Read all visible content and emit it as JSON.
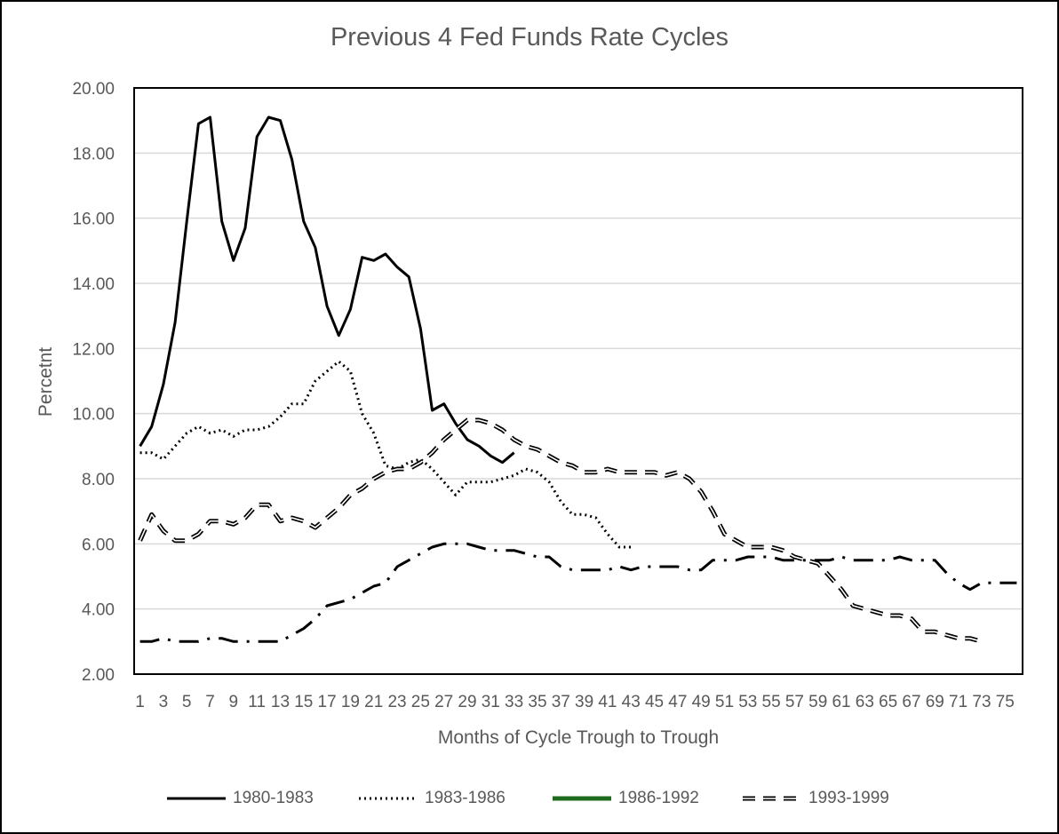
{
  "chart_data": {
    "type": "line",
    "title": "Previous 4 Fed Funds Rate Cycles",
    "xlabel": "Months of Cycle Trough to Trough",
    "ylabel": "Percetnt",
    "ylim": [
      2,
      20
    ],
    "yticks": [
      "2.00",
      "4.00",
      "6.00",
      "8.00",
      "10.00",
      "12.00",
      "14.00",
      "16.00",
      "18.00",
      "20.00"
    ],
    "xlim": [
      1,
      76
    ],
    "xtick_labels": [
      "1",
      "3",
      "5",
      "7",
      "9",
      "11",
      "13",
      "15",
      "17",
      "19",
      "21",
      "23",
      "25",
      "27",
      "29",
      "31",
      "33",
      "35",
      "37",
      "39",
      "41",
      "43",
      "45",
      "47",
      "49",
      "51",
      "53",
      "55",
      "57",
      "59",
      "61",
      "63",
      "65",
      "67",
      "69",
      "71",
      "73",
      "75"
    ],
    "grid": "horizontal",
    "legend_position": "bottom",
    "series": [
      {
        "name": "1980-1983",
        "color": "#000000",
        "line_style": "solid",
        "x": [
          1,
          2,
          3,
          4,
          5,
          6,
          7,
          8,
          9,
          10,
          11,
          12,
          13,
          14,
          15,
          16,
          17,
          18,
          19,
          20,
          21,
          22,
          23,
          24,
          25,
          26,
          27,
          28,
          29,
          30,
          31,
          32,
          33
        ],
        "values": [
          9.0,
          9.6,
          10.9,
          12.8,
          15.9,
          18.9,
          19.1,
          15.9,
          14.7,
          15.7,
          18.5,
          19.1,
          19.0,
          17.8,
          15.9,
          15.1,
          13.3,
          12.4,
          13.2,
          14.8,
          14.7,
          14.9,
          14.5,
          14.2,
          12.6,
          10.1,
          10.3,
          9.7,
          9.2,
          9.0,
          8.7,
          8.5,
          8.8
        ]
      },
      {
        "name": "1983-1986",
        "color": "#000000",
        "line_style": "dotted",
        "x": [
          1,
          2,
          3,
          4,
          5,
          6,
          7,
          8,
          9,
          10,
          11,
          12,
          13,
          14,
          15,
          16,
          17,
          18,
          19,
          20,
          21,
          22,
          23,
          24,
          25,
          26,
          27,
          28,
          29,
          30,
          31,
          32,
          33,
          34,
          35,
          36,
          37,
          38,
          39,
          40,
          41,
          42,
          43
        ],
        "values": [
          8.8,
          8.8,
          8.6,
          9.0,
          9.4,
          9.6,
          9.4,
          9.5,
          9.3,
          9.5,
          9.5,
          9.6,
          9.9,
          10.3,
          10.3,
          11.0,
          11.3,
          11.6,
          11.3,
          10.0,
          9.4,
          8.4,
          8.3,
          8.5,
          8.6,
          8.3,
          7.9,
          7.5,
          7.9,
          7.9,
          7.9,
          8.0,
          8.1,
          8.3,
          8.2,
          7.9,
          7.3,
          6.9,
          6.9,
          6.8,
          6.3,
          5.9,
          5.9
        ]
      },
      {
        "name": "1986-1992",
        "color": "#000000",
        "legend_color": "#1e6b1e",
        "line_style": "dash-dot",
        "x": [
          1,
          2,
          3,
          4,
          5,
          6,
          7,
          8,
          9,
          10,
          11,
          12,
          13,
          14,
          15,
          16,
          17,
          18,
          19,
          20,
          21,
          22,
          23,
          24,
          25,
          26,
          27,
          28,
          29,
          30,
          31,
          32,
          33,
          34,
          35,
          36,
          37,
          38,
          39,
          40,
          41,
          42,
          43,
          44,
          45,
          46,
          47,
          48,
          49,
          50,
          51,
          52,
          53,
          54,
          55,
          56,
          57,
          58,
          59,
          60,
          61,
          62,
          63,
          64,
          65,
          66,
          67,
          68,
          69,
          70,
          71,
          72,
          73,
          74,
          75,
          76
        ],
        "values": [
          3.0,
          3.0,
          3.1,
          3.0,
          3.0,
          3.0,
          3.1,
          3.1,
          3.0,
          3.0,
          3.0,
          3.0,
          3.0,
          3.2,
          3.4,
          3.7,
          4.1,
          4.2,
          4.3,
          4.5,
          4.7,
          4.8,
          5.3,
          5.5,
          5.7,
          5.9,
          6.0,
          6.0,
          6.0,
          5.9,
          5.8,
          5.8,
          5.8,
          5.7,
          5.6,
          5.6,
          5.3,
          5.2,
          5.2,
          5.2,
          5.2,
          5.3,
          5.2,
          5.3,
          5.3,
          5.3,
          5.3,
          5.2,
          5.2,
          5.5,
          5.5,
          5.5,
          5.6,
          5.6,
          5.6,
          5.5,
          5.5,
          5.5,
          5.5,
          5.5,
          5.6,
          5.5,
          5.5,
          5.5,
          5.5,
          5.6,
          5.5,
          5.5,
          5.5,
          5.1,
          4.8,
          4.6,
          4.8,
          4.8,
          4.8,
          4.8
        ]
      },
      {
        "name": "1993-1999",
        "color": "#000000",
        "line_style": "dashed-double",
        "x": [
          1,
          2,
          3,
          4,
          5,
          6,
          7,
          8,
          9,
          10,
          11,
          12,
          13,
          14,
          15,
          16,
          17,
          18,
          19,
          20,
          21,
          22,
          23,
          24,
          25,
          26,
          27,
          28,
          29,
          30,
          31,
          32,
          33,
          34,
          35,
          36,
          37,
          38,
          39,
          40,
          41,
          42,
          43,
          44,
          45,
          46,
          47,
          48,
          49,
          50,
          51,
          52,
          53,
          54,
          55,
          56,
          57,
          58,
          59,
          60,
          61,
          62,
          63,
          64,
          65,
          66,
          67,
          68,
          69,
          70,
          71,
          72,
          73
        ],
        "values": [
          6.1,
          6.9,
          6.4,
          6.1,
          6.1,
          6.3,
          6.7,
          6.7,
          6.6,
          6.8,
          7.2,
          7.2,
          6.7,
          6.8,
          6.7,
          6.5,
          6.8,
          7.1,
          7.5,
          7.7,
          8.0,
          8.2,
          8.3,
          8.3,
          8.5,
          8.8,
          9.2,
          9.5,
          9.8,
          9.8,
          9.7,
          9.5,
          9.2,
          9.0,
          8.9,
          8.7,
          8.5,
          8.4,
          8.2,
          8.2,
          8.3,
          8.2,
          8.2,
          8.2,
          8.2,
          8.1,
          8.2,
          8.0,
          7.6,
          7.0,
          6.3,
          6.1,
          5.9,
          5.9,
          5.9,
          5.8,
          5.6,
          5.5,
          5.4,
          5.0,
          4.6,
          4.1,
          4.0,
          3.9,
          3.8,
          3.8,
          3.7,
          3.3,
          3.3,
          3.2,
          3.1,
          3.1,
          3.0
        ]
      }
    ]
  }
}
